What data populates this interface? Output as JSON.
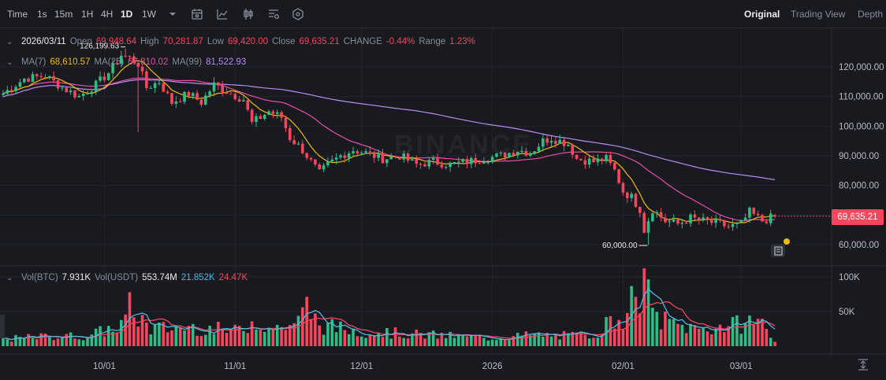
{
  "toolbar": {
    "timeframes": [
      {
        "label": "Time",
        "active": false
      },
      {
        "label": "1s",
        "active": false
      },
      {
        "label": "15m",
        "active": false
      },
      {
        "label": "1H",
        "active": false
      },
      {
        "label": "4H",
        "active": false
      },
      {
        "label": "1D",
        "active": true
      },
      {
        "label": "1W",
        "active": false
      }
    ],
    "tools": [
      "chevron-down-icon",
      "calendar-icon",
      "line-chart-icon",
      "candlestick-icon",
      "indicator-settings-icon",
      "hexagon-settings-icon"
    ],
    "views": [
      {
        "label": "Original",
        "active": true
      },
      {
        "label": "Trading View",
        "active": false
      },
      {
        "label": "Depth",
        "active": false
      }
    ]
  },
  "ohlc": {
    "date": "2026/03/11",
    "open_label": "Open",
    "open": "69,948.64",
    "high_label": "High",
    "high": "70,281.87",
    "low_label": "Low",
    "low": "69,420.00",
    "close_label": "Close",
    "close": "69,635.21",
    "change_label": "CHANGE",
    "change": "-0.44%",
    "range_label": "Range",
    "range": "1.23%"
  },
  "ma": {
    "ma7_label": "MA(7)",
    "ma7": "68,610.57",
    "ma25_label": "MA(25)",
    "ma25": "67,810.02",
    "ma99_label": "MA(99)",
    "ma99": "81,522.93"
  },
  "volume": {
    "vol_btc_label": "Vol(BTC)",
    "vol_btc": "7.931K",
    "vol_usdt_label": "Vol(USDT)",
    "vol_usdt": "553.74M",
    "ma_a": "21.852K",
    "ma_b": "24.47K"
  },
  "current_price": "69,635.21",
  "watermark": "BINANCE",
  "colors": {
    "up": "#2ebd85",
    "down": "#f6465d",
    "ma7": "#f0b90b",
    "ma25": "#e84fa6",
    "ma99": "#b98cf5",
    "vol_ma_a": "#4fb8e0",
    "vol_ma_b": "#f6465d"
  },
  "chart_data": {
    "type": "candlestick",
    "price_axis_ticks": [
      "120,000.00",
      "110,000.00",
      "100,000.00",
      "90,000.00",
      "80,000.00",
      "70,000.00",
      "60,000.00"
    ],
    "price_tick_values": [
      120000,
      110000,
      100000,
      90000,
      80000,
      70000,
      60000
    ],
    "volume_axis_ticks": [
      "100K",
      "50K"
    ],
    "volume_tick_values": [
      100000,
      50000
    ],
    "x_tick_labels": [
      {
        "label": "10/01",
        "index": 24
      },
      {
        "label": "11/01",
        "index": 55
      },
      {
        "label": "12/01",
        "index": 85
      },
      {
        "label": "2026",
        "index": 116
      },
      {
        "label": "02/01",
        "index": 147
      },
      {
        "label": "03/01",
        "index": 175
      }
    ],
    "annotations": [
      {
        "label": "126,199.63",
        "index": 29,
        "value": 126199.63
      },
      {
        "label": "60,000.00",
        "index": 153,
        "value": 60000
      }
    ],
    "close_waypoints": [
      [
        0,
        111000
      ],
      [
        5,
        116000
      ],
      [
        10,
        117000
      ],
      [
        14,
        113000
      ],
      [
        18,
        110000
      ],
      [
        22,
        114000
      ],
      [
        25,
        118000
      ],
      [
        28,
        124000
      ],
      [
        30,
        123000
      ],
      [
        32,
        121000
      ],
      [
        34,
        113000
      ],
      [
        37,
        115000
      ],
      [
        40,
        108000
      ],
      [
        44,
        111000
      ],
      [
        47,
        108000
      ],
      [
        50,
        114000
      ],
      [
        54,
        111000
      ],
      [
        57,
        109000
      ],
      [
        59,
        101000
      ],
      [
        63,
        105000
      ],
      [
        66,
        103000
      ],
      [
        68,
        96000
      ],
      [
        71,
        92000
      ],
      [
        73,
        88000
      ],
      [
        75,
        84000
      ],
      [
        77,
        87000
      ],
      [
        80,
        90000
      ],
      [
        83,
        92000
      ],
      [
        86,
        91000
      ],
      [
        90,
        89000
      ],
      [
        94,
        90000
      ],
      [
        98,
        87000
      ],
      [
        102,
        88000
      ],
      [
        106,
        87000
      ],
      [
        110,
        88000
      ],
      [
        114,
        89000
      ],
      [
        118,
        90000
      ],
      [
        122,
        92000
      ],
      [
        125,
        91000
      ],
      [
        128,
        95000
      ],
      [
        130,
        96000
      ],
      [
        134,
        94000
      ],
      [
        136,
        89000
      ],
      [
        140,
        88000
      ],
      [
        143,
        89000
      ],
      [
        145,
        85000
      ],
      [
        147,
        78000
      ],
      [
        149,
        76000
      ],
      [
        151,
        72000
      ],
      [
        152,
        65000
      ],
      [
        154,
        72000
      ],
      [
        157,
        68000
      ],
      [
        160,
        67000
      ],
      [
        163,
        69000
      ],
      [
        166,
        68000
      ],
      [
        170,
        67000
      ],
      [
        172,
        66000
      ],
      [
        175,
        67000
      ],
      [
        177,
        71000
      ],
      [
        180,
        68000
      ],
      [
        183,
        69635
      ]
    ],
    "volume_waypoints": [
      [
        0,
        10000
      ],
      [
        10,
        14000
      ],
      [
        20,
        15000
      ],
      [
        28,
        30000
      ],
      [
        30,
        55000
      ],
      [
        35,
        25000
      ],
      [
        45,
        28000
      ],
      [
        55,
        22000
      ],
      [
        60,
        38000
      ],
      [
        64,
        25000
      ],
      [
        70,
        35000
      ],
      [
        72,
        58000
      ],
      [
        75,
        30000
      ],
      [
        85,
        22000
      ],
      [
        95,
        18000
      ],
      [
        105,
        15000
      ],
      [
        115,
        12000
      ],
      [
        125,
        16000
      ],
      [
        135,
        15000
      ],
      [
        140,
        18000
      ],
      [
        144,
        35000
      ],
      [
        147,
        45000
      ],
      [
        149,
        65000
      ],
      [
        150,
        50000
      ],
      [
        152,
        105000
      ],
      [
        153,
        70000
      ],
      [
        155,
        40000
      ],
      [
        160,
        30000
      ],
      [
        165,
        25000
      ],
      [
        170,
        28000
      ],
      [
        175,
        32000
      ],
      [
        179,
        40000
      ],
      [
        183,
        8000
      ]
    ]
  }
}
